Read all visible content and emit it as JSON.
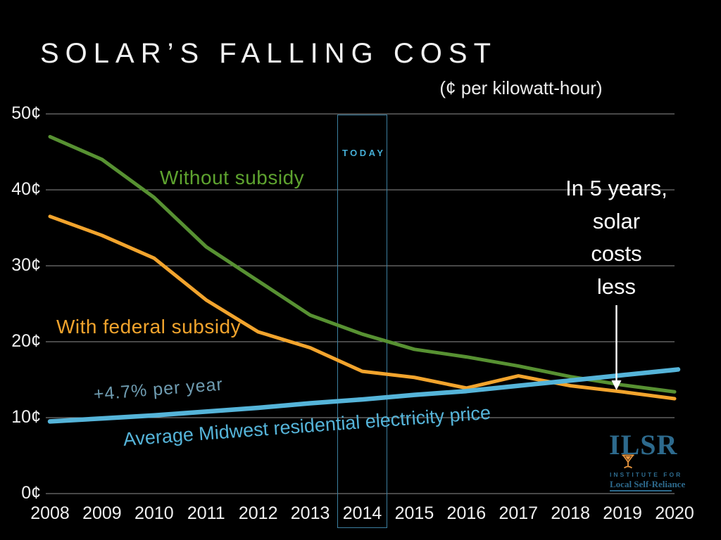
{
  "title": "SOLAR’S FALLING COST",
  "subtitle": "(¢ per kilowatt-hour)",
  "today_label": "TODAY",
  "annotation": {
    "lines": [
      "In 5 years,",
      "solar",
      "costs",
      "less"
    ]
  },
  "labels": {
    "without_subsidy": "Without subsidy",
    "with_subsidy": "With federal subsidy",
    "growth_rate": "+4.7% per year",
    "electricity": "Average Midwest residential electricity price"
  },
  "logo": {
    "acronym": "ILSR",
    "line1": "INSTITUTE FOR",
    "line2": "Local Self-Reliance"
  },
  "colors": {
    "background": "#000000",
    "title": "#f2f2f2",
    "grid": "#8f8f8f",
    "axis_labels": "#f0f0f0",
    "green_line": "#579132",
    "green_label": "#5ea32f",
    "orange_line": "#f2a42d",
    "blue_line": "#55b4d9",
    "growth_label": "#6f9cb1",
    "today_text": "#45aed6",
    "today_box_border": "#3c7fa0",
    "annotation_text": "#ffffff",
    "arrow": "#ffffff",
    "logo_blue": "#2d6a8d",
    "logo_orange": "#e8963f"
  },
  "chart_data": {
    "type": "line",
    "title": "SOLAR'S FALLING COST",
    "subtitle": "(¢ per kilowatt-hour)",
    "xlabel": "",
    "ylabel": "¢ per kilowatt-hour",
    "x": [
      2008,
      2009,
      2010,
      2011,
      2012,
      2013,
      2014,
      2015,
      2016,
      2017,
      2018,
      2019,
      2020
    ],
    "series": [
      {
        "name": "Without subsidy",
        "color": "#579132",
        "values": [
          47,
          44,
          39,
          32.5,
          28,
          23.5,
          21,
          19,
          18,
          16.8,
          15.4,
          14.3,
          13.4
        ]
      },
      {
        "name": "With federal subsidy",
        "color": "#f2a42d",
        "values": [
          36.5,
          34,
          31,
          25.5,
          21.3,
          19.2,
          16.1,
          15.3,
          13.9,
          15.5,
          14.2,
          13.4,
          12.5
        ]
      },
      {
        "name": "Average Midwest residential electricity price (+4.7% per year)",
        "color": "#55b4d9",
        "values": [
          9.5,
          9.9,
          10.3,
          10.8,
          11.3,
          11.9,
          12.4,
          13.0,
          13.5,
          14.2,
          14.9,
          15.6,
          16.3
        ]
      }
    ],
    "ylim": [
      0,
      50
    ],
    "yticks": [
      {
        "label": "0¢",
        "value": 0
      },
      {
        "label": "10¢",
        "value": 10
      },
      {
        "label": "20¢",
        "value": 20
      },
      {
        "label": "30¢",
        "value": 30
      },
      {
        "label": "40¢",
        "value": 40
      },
      {
        "label": "50¢",
        "value": 50
      }
    ],
    "grid": true,
    "legend_position": "inline-labels",
    "annotations": [
      {
        "text": "TODAY",
        "x": 2014,
        "type": "highlight-box"
      },
      {
        "text": "In 5 years, solar costs less",
        "x": 2019,
        "type": "callout-arrow"
      }
    ]
  }
}
